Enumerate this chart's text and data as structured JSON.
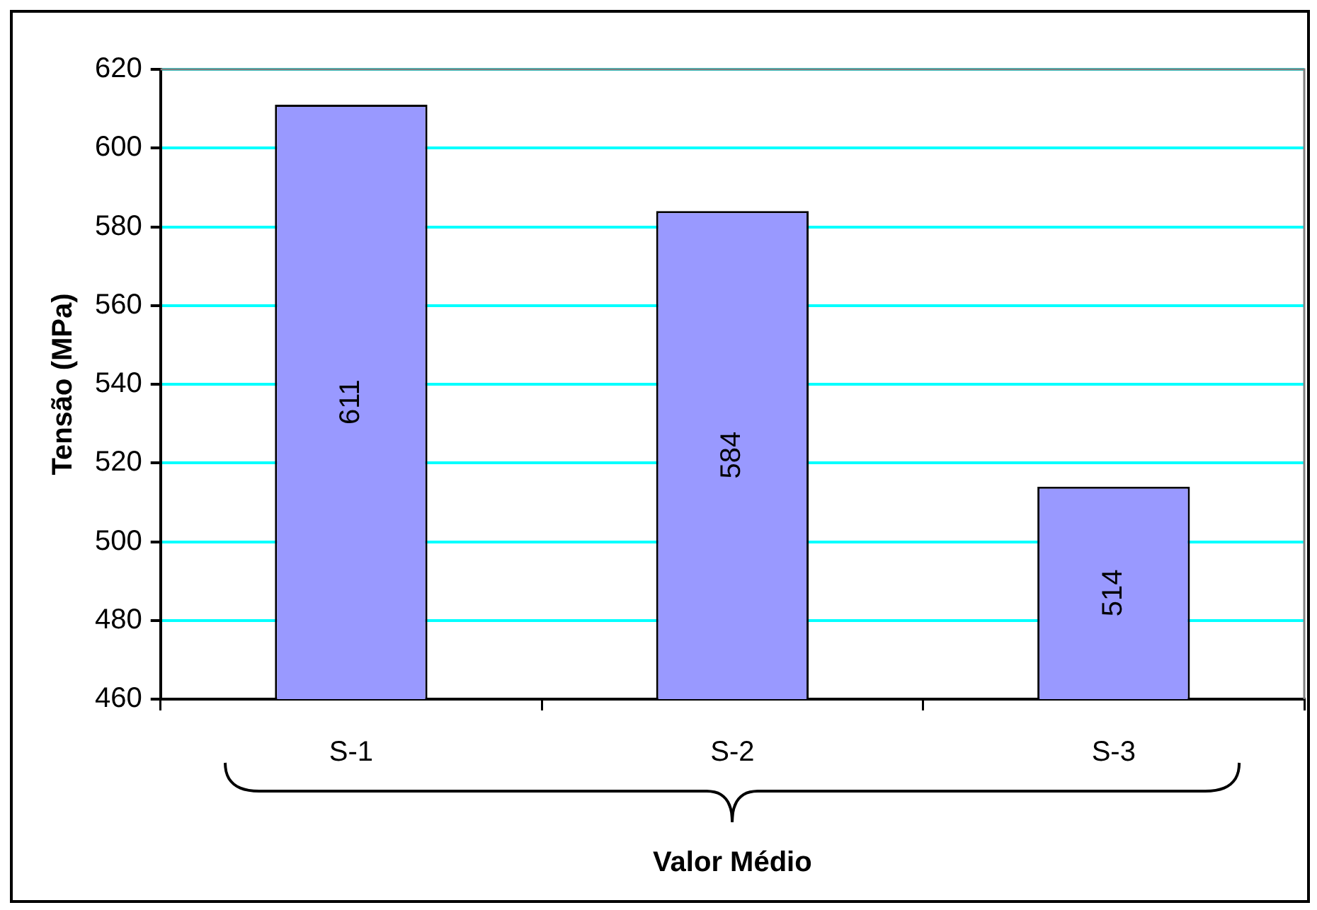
{
  "chart_data": {
    "type": "bar",
    "xlabel": "Valor Médio",
    "ylabel": "Tensão (MPa)",
    "categories": [
      "S-1",
      "S-2",
      "S-3"
    ],
    "values": [
      611,
      584,
      514
    ],
    "color": "#9999ff",
    "ylim": [
      460,
      620
    ],
    "yticks": [
      460,
      480,
      500,
      520,
      540,
      560,
      580,
      600,
      620
    ],
    "grid": "y",
    "data_labels": true
  }
}
